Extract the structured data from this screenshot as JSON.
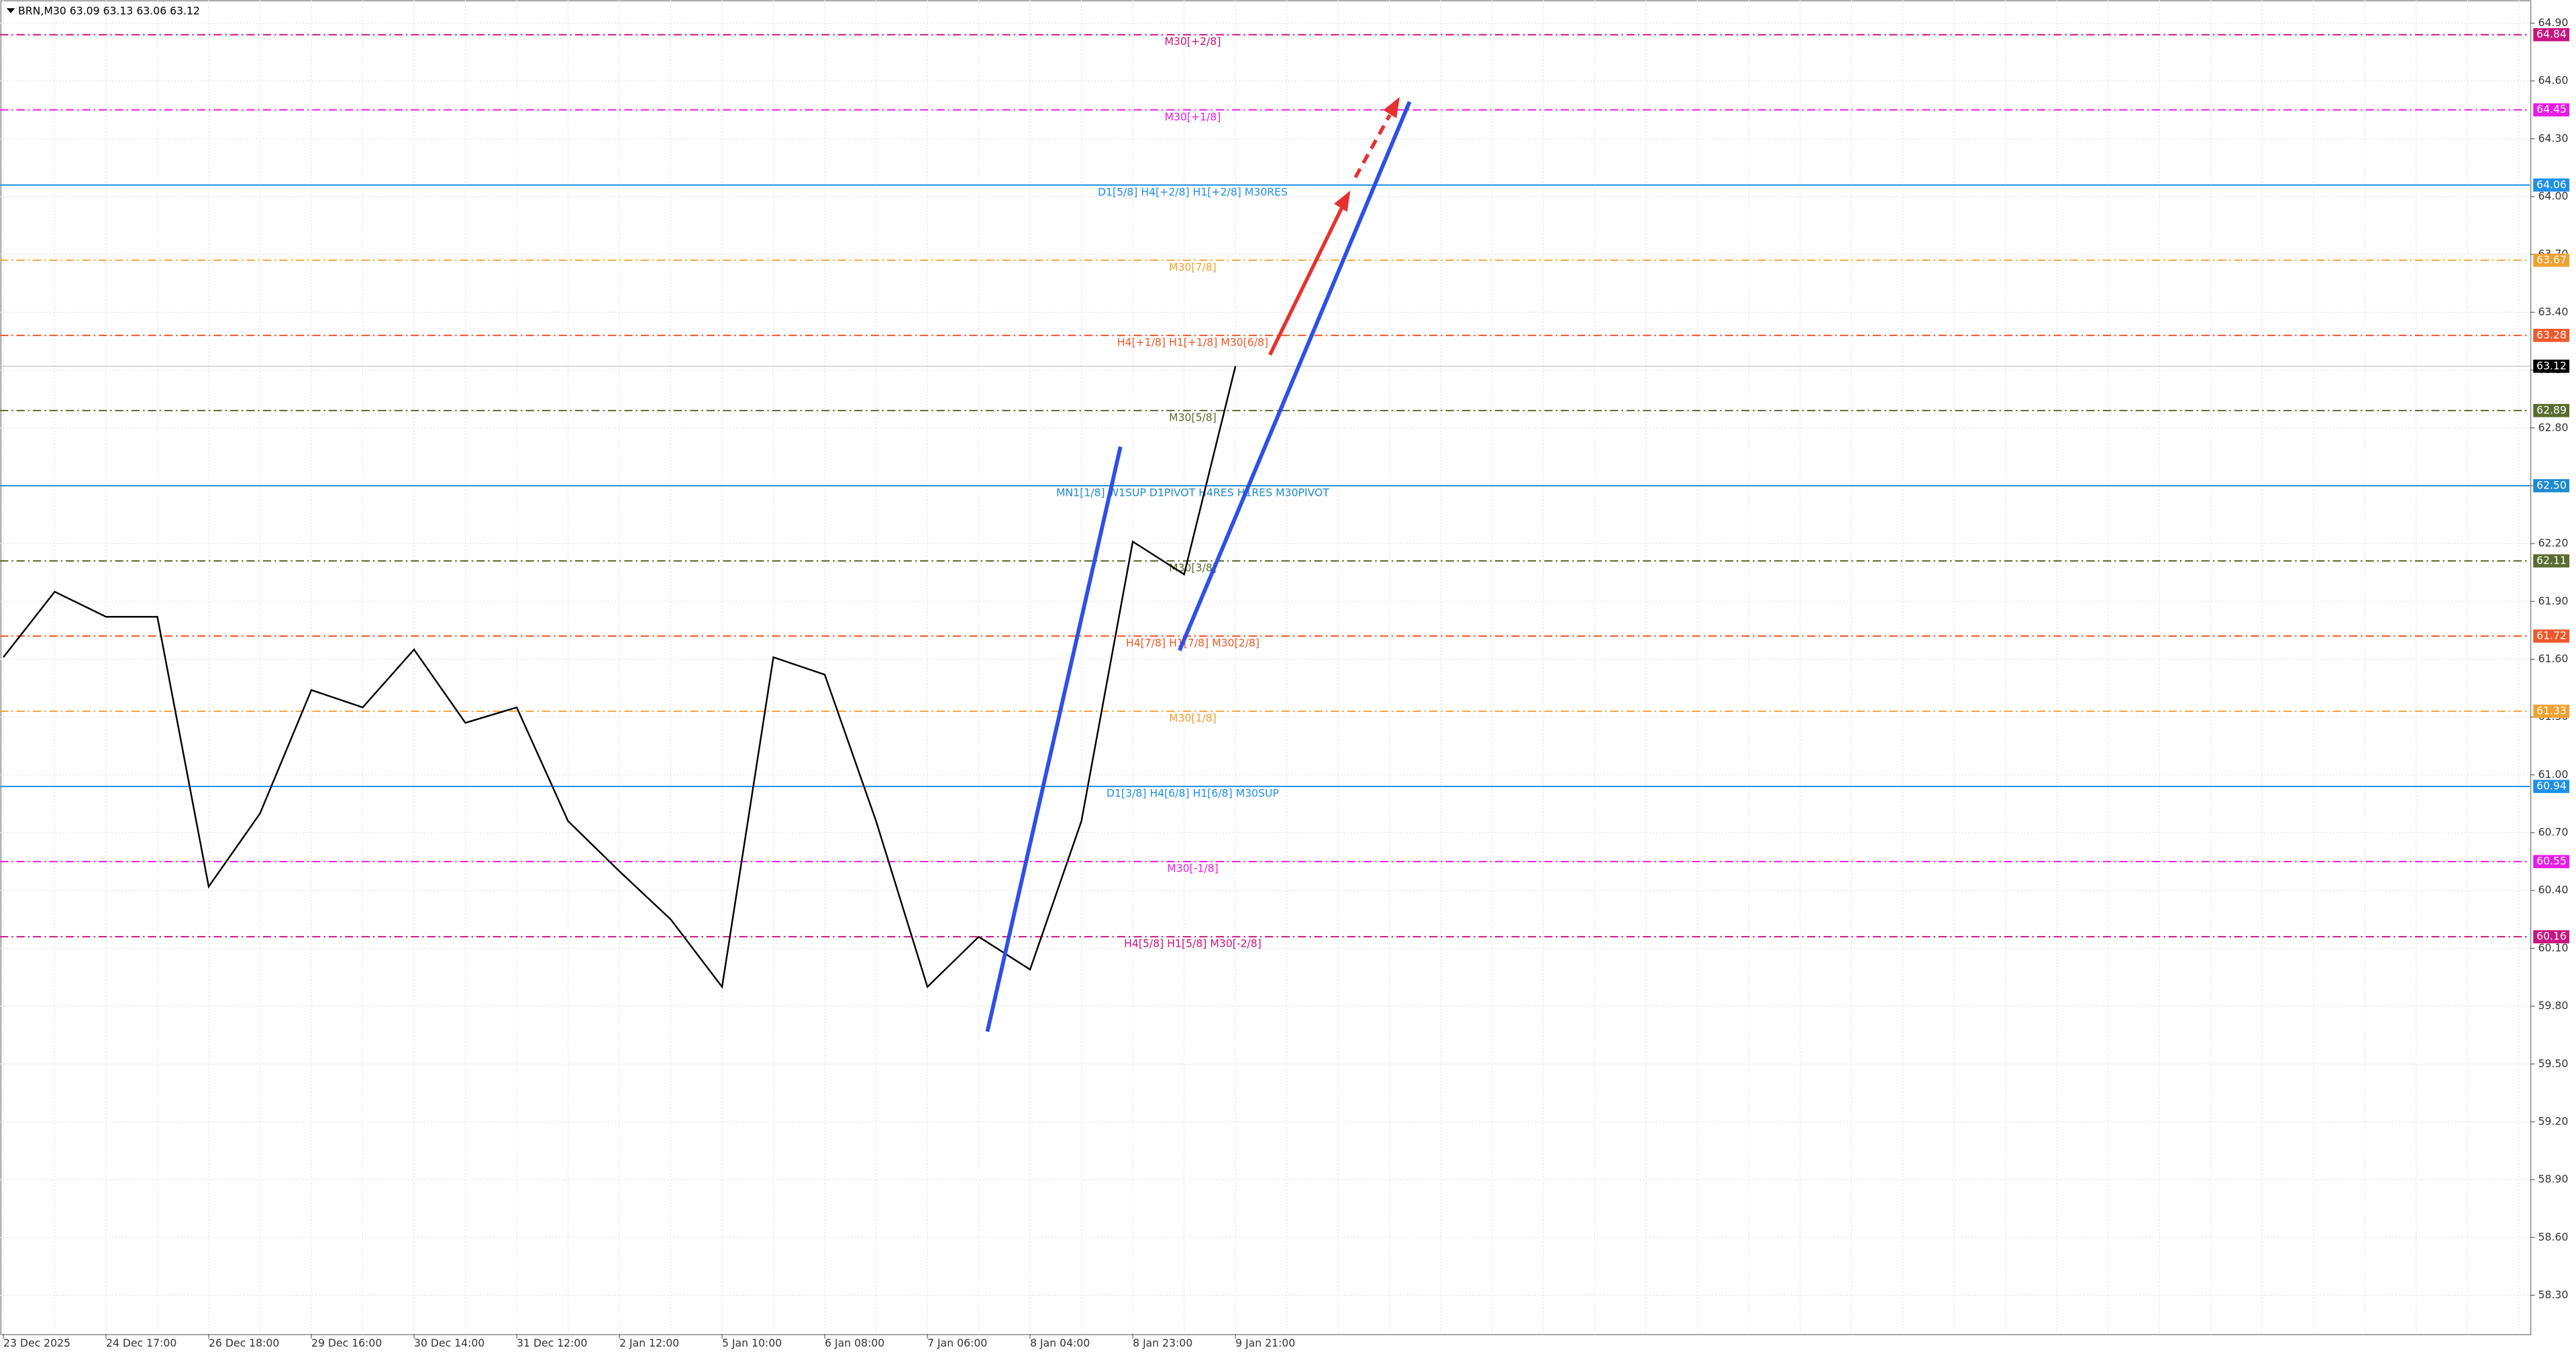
{
  "chart_data": {
    "type": "line",
    "title": "BRN,M30  63.09 63.13 63.06 63.12",
    "categories": [
      "23 Dec 2025",
      null,
      "24 Dec 17:00",
      null,
      "26 Dec 18:00",
      null,
      "29 Dec 16:00",
      null,
      "30 Dec 14:00",
      null,
      "31 Dec 12:00",
      null,
      "2 Jan 12:00",
      null,
      "5 Jan 10:00",
      null,
      "6 Jan 08:00",
      null,
      "7 Jan 06:00",
      null,
      "8 Jan 04:00",
      null,
      "8 Jan 23:00",
      null,
      "9 Jan 21:00",
      null,
      null,
      null,
      null,
      null,
      null,
      null,
      null,
      null,
      null,
      null,
      null,
      null,
      null,
      null,
      null,
      null,
      null,
      null,
      null,
      null,
      null,
      null,
      null,
      null
    ],
    "series": [
      {
        "color": "#000000",
        "values": [
          61.61,
          61.95,
          61.82,
          61.82,
          60.42,
          60.8,
          61.44,
          61.35,
          61.65,
          61.27,
          61.35,
          60.76,
          60.5,
          60.25,
          59.9,
          61.61,
          61.52,
          60.76,
          59.9,
          60.16,
          59.99,
          60.76,
          62.21,
          62.04,
          63.12,
          null,
          null,
          null,
          null,
          null,
          null,
          null,
          null,
          null,
          null,
          null,
          null,
          null,
          null,
          null,
          null,
          null,
          null,
          null,
          null,
          null,
          null,
          null,
          null,
          null
        ]
      }
    ],
    "ylim": [
      58.1,
      65.02
    ],
    "yticks": [
      {
        "value": 64.9,
        "label": "64.90"
      },
      {
        "value": 64.6,
        "label": "64.60"
      },
      {
        "value": 64.3,
        "label": "64.30"
      },
      {
        "value": 64,
        "label": "64.00"
      },
      {
        "value": 63.7,
        "label": "63.70"
      },
      {
        "value": 63.4,
        "label": "63.40"
      },
      {
        "value": 63.1,
        "label": "63.10"
      },
      {
        "value": 62.8,
        "label": "62.80"
      },
      {
        "value": 62.5,
        "label": "62.50"
      },
      {
        "value": 62.2,
        "label": "62.20"
      },
      {
        "value": 61.9,
        "label": "61.90"
      },
      {
        "value": 61.6,
        "label": "61.60"
      },
      {
        "value": 61.3,
        "label": "61.30"
      },
      {
        "value": 61,
        "label": "61.00"
      },
      {
        "value": 60.7,
        "label": "60.70"
      },
      {
        "value": 60.4,
        "label": "60.40"
      },
      {
        "value": 60.1,
        "label": "60.10"
      },
      {
        "value": 59.8,
        "label": "59.80"
      },
      {
        "value": 59.5,
        "label": "59.50"
      },
      {
        "value": 59.2,
        "label": "59.20"
      },
      {
        "value": 58.9,
        "label": "58.90"
      },
      {
        "value": 58.6,
        "label": "58.60"
      },
      {
        "value": 58.3,
        "label": "58.30"
      }
    ],
    "grid": true,
    "levels": [
      {
        "value": 64.84,
        "tag": "64.84",
        "label": "M30[+2/8]",
        "color": "#c8157f",
        "style": "dashdot"
      },
      {
        "value": 64.45,
        "tag": "64.45",
        "label": "M30[+1/8]",
        "color": "#e81ce8",
        "style": "dashdot"
      },
      {
        "value": 64.06,
        "tag": "64.06",
        "label": "D1[5/8] H4[+2/8] H1[+2/8] M30RES",
        "color": "#1e8fe8",
        "style": "solid"
      },
      {
        "value": 63.67,
        "tag": "63.67",
        "label": "M30[7/8]",
        "color": "#f0a030",
        "style": "dashdot"
      },
      {
        "value": 63.28,
        "tag": "63.28",
        "label": "H4[+1/8] H1[+1/8] M30[6/8]",
        "color": "#f0582a",
        "style": "dashdot"
      },
      {
        "value": 62.89,
        "tag": "62.89",
        "label": "M30[5/8]",
        "color": "#5a6b2f",
        "style": "dashdot"
      },
      {
        "value": 62.5,
        "tag": "62.50",
        "label": "MN1[1/8] W1SUP D1PIVOT H4RES H1RES M30PIVOT",
        "color": "#1e8ad0",
        "style": "solid"
      },
      {
        "value": 62.11,
        "tag": "62.11",
        "label": "M30[3/8]",
        "color": "#5a6b2f",
        "style": "dashdot"
      },
      {
        "value": 61.72,
        "tag": "61.72",
        "label": "H4[7/8] H1[7/8] M30[2/8]",
        "color": "#f0582a",
        "style": "dashdot"
      },
      {
        "value": 61.33,
        "tag": "61.33",
        "label": "M30[1/8]",
        "color": "#f0a030",
        "style": "dashdot"
      },
      {
        "value": 60.94,
        "tag": "60.94",
        "label": "D1[3/8] H4[6/8] H1[6/8] M30SUP",
        "color": "#1e8fe8",
        "style": "solid"
      },
      {
        "value": 60.55,
        "tag": "60.55",
        "label": "M30[-1/8]",
        "color": "#e81ce8",
        "style": "dashdot"
      },
      {
        "value": 60.16,
        "tag": "60.16",
        "label": "H4[5/8] H1[5/8] M30[-2/8]",
        "color": "#c8157f",
        "style": "dashdot"
      }
    ],
    "current_price": {
      "value": 63.12,
      "tag": "63.12",
      "color": "#000000"
    }
  }
}
